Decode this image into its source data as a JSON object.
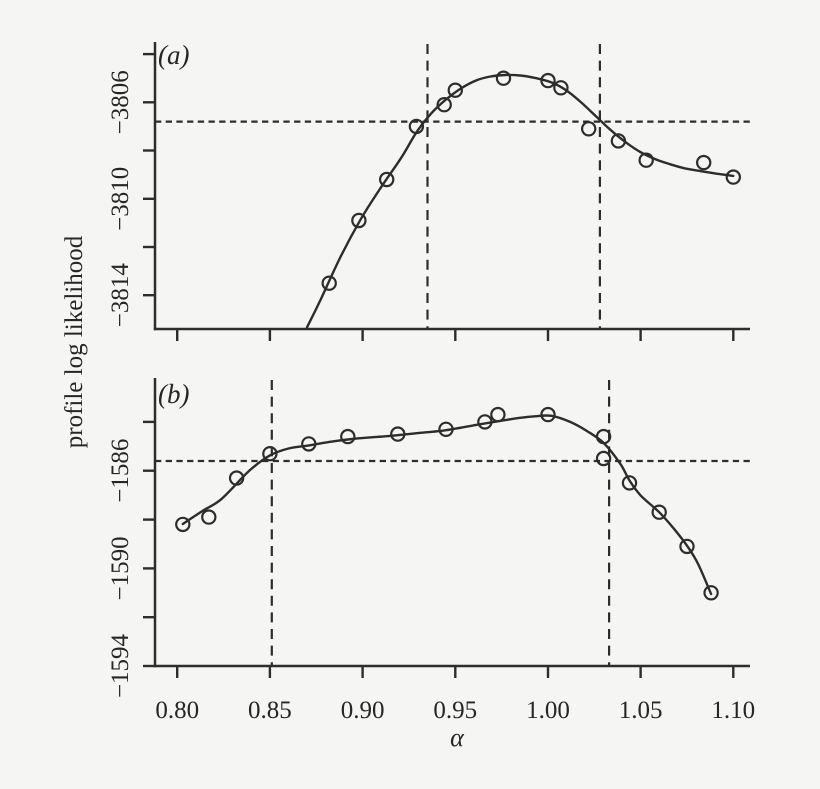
{
  "figure": {
    "background": "#f5f5f4",
    "ink": "#2d2d2d",
    "text_color": "#262626"
  },
  "chart_data": {
    "type": "scatter",
    "title": "",
    "xlabel": "α",
    "ylabel": "profile log likelihood",
    "legend": "none",
    "grid": false,
    "x_axis": {
      "xlim": [
        0.788,
        1.109
      ],
      "tick_values": [
        0.8,
        0.85,
        0.9,
        0.95,
        1.0,
        1.05,
        1.1
      ],
      "tick_labels": [
        "0.80",
        "0.85",
        "0.90",
        "0.95",
        "1.00",
        "1.05",
        "1.10"
      ]
    },
    "panels": [
      {
        "id": "a",
        "panel_letter": "(a)",
        "ylim": [
          -3815.4,
          -3803.5
        ],
        "y_ticks": [
          {
            "value": -3804,
            "label": ""
          },
          {
            "value": -3806,
            "label": "−3806"
          },
          {
            "value": -3808,
            "label": ""
          },
          {
            "value": -3810,
            "label": "−3810"
          },
          {
            "value": -3812,
            "label": ""
          },
          {
            "value": -3814,
            "label": "−3814"
          }
        ],
        "x_tick_labels_visible": false,
        "dashed_hline_y": -3806.8,
        "dashed_vlines_x": [
          0.935,
          1.028
        ],
        "points": {
          "x": [
            0.882,
            0.898,
            0.913,
            0.929,
            0.944,
            0.95,
            0.976,
            1.0,
            1.007,
            1.022,
            1.038,
            1.053,
            1.084,
            1.1
          ],
          "y": [
            -3813.5,
            -3810.9,
            -3809.2,
            -3807.0,
            -3806.1,
            -3805.5,
            -3805.0,
            -3805.1,
            -3805.4,
            -3807.1,
            -3807.6,
            -3808.4,
            -3808.5,
            -3809.1
          ]
        },
        "curve": {
          "x": [
            0.87,
            0.877,
            0.888,
            0.899,
            0.91,
            0.921,
            0.929,
            0.937,
            0.945,
            0.953,
            0.961,
            0.969,
            0.977,
            0.985,
            0.993,
            1.002,
            1.01,
            1.018,
            1.026,
            1.034,
            1.042,
            1.05,
            1.058,
            1.066,
            1.074,
            1.083,
            1.091,
            1.1
          ],
          "y": [
            -3815.33,
            -3814.24,
            -3812.42,
            -3810.85,
            -3809.52,
            -3808.28,
            -3807.25,
            -3806.46,
            -3805.88,
            -3805.43,
            -3805.1,
            -3804.93,
            -3804.87,
            -3804.89,
            -3804.99,
            -3805.18,
            -3805.51,
            -3806.01,
            -3806.59,
            -3807.16,
            -3807.66,
            -3808.07,
            -3808.36,
            -3808.57,
            -3808.74,
            -3808.86,
            -3808.96,
            -3809.05
          ]
        }
      },
      {
        "id": "b",
        "panel_letter": "(b)",
        "ylim": [
          -1594.0,
          -1582.2
        ],
        "y_ticks": [
          {
            "value": -1584,
            "label": ""
          },
          {
            "value": -1586,
            "label": "−1586"
          },
          {
            "value": -1588,
            "label": ""
          },
          {
            "value": -1590,
            "label": "−1590"
          },
          {
            "value": -1592,
            "label": ""
          },
          {
            "value": -1594,
            "label": "−1594"
          }
        ],
        "x_tick_labels_visible": true,
        "dashed_hline_y": -1585.6,
        "dashed_vlines_x": [
          0.851,
          1.033
        ],
        "points": {
          "x": [
            0.803,
            0.817,
            0.832,
            0.85,
            0.871,
            0.892,
            0.919,
            0.945,
            0.966,
            0.973,
            1.0,
            1.03,
            1.03,
            1.044,
            1.06,
            1.075,
            1.088
          ],
          "y": [
            -1588.2,
            -1587.9,
            -1586.3,
            -1585.3,
            -1584.9,
            -1584.6,
            -1584.5,
            -1584.3,
            -1584.0,
            -1583.7,
            -1583.7,
            -1584.6,
            -1585.5,
            -1586.5,
            -1587.7,
            -1589.1,
            -1591.0
          ]
        },
        "curve": {
          "x": [
            0.803,
            0.814,
            0.824,
            0.839,
            0.85,
            0.86,
            0.871,
            0.882,
            0.892,
            0.903,
            0.914,
            0.932,
            0.945,
            0.964,
            0.975,
            0.985,
            0.993,
            1.002,
            1.012,
            1.021,
            1.03,
            1.039,
            1.044,
            1.05,
            1.06,
            1.068,
            1.075,
            1.081,
            1.088
          ],
          "y": [
            -1588.18,
            -1587.63,
            -1587.15,
            -1585.99,
            -1585.37,
            -1585.09,
            -1584.96,
            -1584.82,
            -1584.72,
            -1584.64,
            -1584.58,
            -1584.44,
            -1584.34,
            -1584.09,
            -1583.95,
            -1583.83,
            -1583.77,
            -1583.75,
            -1584.0,
            -1584.37,
            -1584.86,
            -1585.71,
            -1586.4,
            -1587.01,
            -1587.7,
            -1588.38,
            -1589.07,
            -1589.82,
            -1591.05
          ]
        }
      }
    ]
  }
}
